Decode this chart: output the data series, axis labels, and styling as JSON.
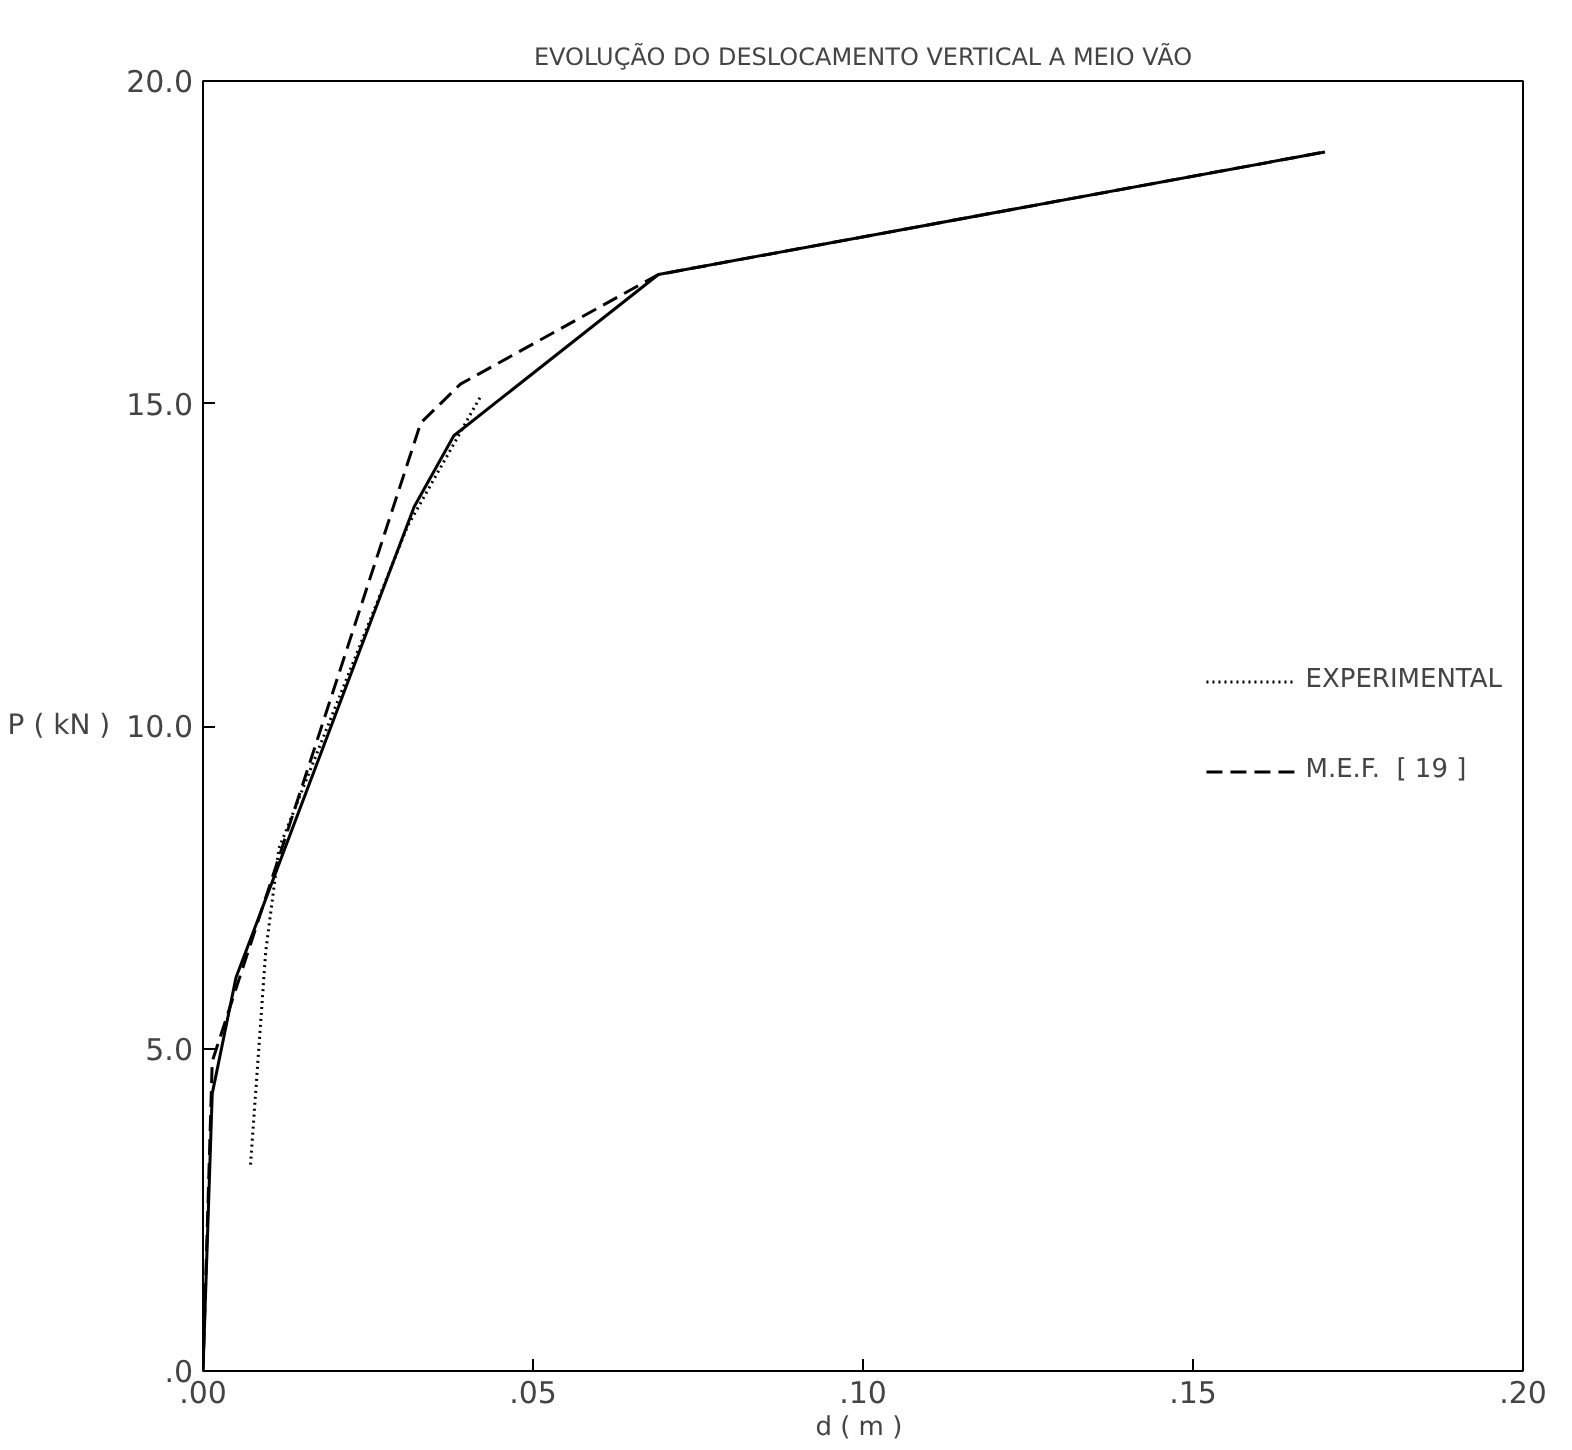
{
  "chart_data": {
    "type": "line",
    "title": "EVOLUÇÃO DO DESLOCAMENTO VERTICAL A MEIO VÃO",
    "xlabel": "d  ( m )",
    "ylabel": "P ( kN )",
    "xlim": [
      0,
      0.2
    ],
    "ylim": [
      0,
      20
    ],
    "xticks": [
      {
        "value": 0,
        "label": ".00"
      },
      {
        "value": 0.05,
        "label": ".05"
      },
      {
        "value": 0.1,
        "label": ".10"
      },
      {
        "value": 0.15,
        "label": ".15"
      },
      {
        "value": 0.2,
        "label": ".20"
      }
    ],
    "yticks": [
      {
        "value": 0,
        "label": ".0"
      },
      {
        "value": 5,
        "label": "5.0"
      },
      {
        "value": 10,
        "label": "10.0"
      },
      {
        "value": 15,
        "label": "15.0"
      },
      {
        "value": 20,
        "label": "20.0"
      }
    ],
    "grid": false,
    "legend": "right",
    "marker": "none",
    "series": [
      {
        "name": "EXPERIMENTAL",
        "color": "#000000",
        "line_style": "dotted",
        "x": [
          0.0072,
          0.0095,
          0.0115,
          0.031,
          0.042
        ],
        "values": [
          3.2,
          6.5,
          8.1,
          13.1,
          15.1
        ]
      },
      {
        "name": "M.E.F.  [ 19 ]",
        "color": "#000000",
        "line_style": "dashed",
        "x": [
          0,
          0.0014,
          0.033,
          0.039,
          0.069,
          0.17
        ],
        "values": [
          0,
          4.8,
          14.7,
          15.3,
          17.0,
          18.9
        ]
      },
      {
        "color": "#000000",
        "line_style": "solid",
        "x": [
          0,
          0.0014,
          0.005,
          0.032,
          0.038,
          0.069,
          0.17
        ],
        "values": [
          0,
          4.3,
          6.1,
          13.4,
          14.5,
          17.0,
          18.9
        ]
      }
    ]
  }
}
